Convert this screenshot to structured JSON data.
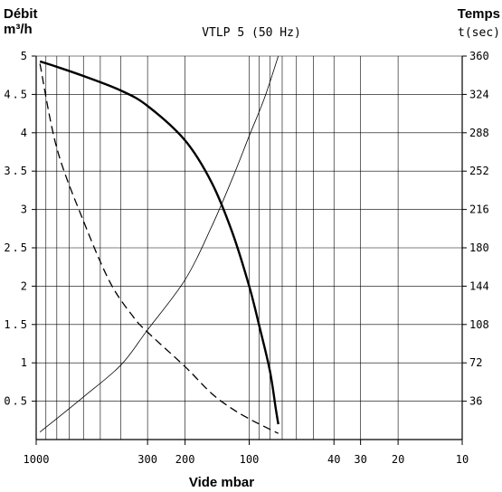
{
  "chart_data": {
    "type": "line",
    "title": "VTLP 5 (50 Hz)",
    "ylabel": "Débit",
    "ylabel_unit": "m³/h",
    "y2label": "Temps",
    "y2label_unit": "t(sec)",
    "xlabel": "Vide mbar",
    "x_scale": "log-reversed",
    "xlim": [
      1000,
      10
    ],
    "ylim": [
      0,
      5
    ],
    "y2lim": [
      0,
      360
    ],
    "x_ticks": [
      1000,
      300,
      200,
      100,
      40,
      30,
      20,
      10
    ],
    "y_ticks": [
      0.5,
      1,
      1.5,
      2,
      2.5,
      3,
      3.5,
      4,
      4.5,
      5
    ],
    "y2_ticks": [
      36,
      72,
      108,
      144,
      180,
      216,
      252,
      288,
      324,
      360
    ],
    "x_grid": [
      1000,
      900,
      800,
      700,
      600,
      500,
      400,
      300,
      200,
      100,
      90,
      80,
      70,
      60,
      50,
      40,
      30,
      20,
      10
    ],
    "grid": true,
    "series": [
      {
        "style": "thick-solid",
        "axis": "left",
        "x": [
          960,
          800,
          600,
          400,
          300,
          200,
          150,
          120,
          100,
          90,
          80,
          75,
          73
        ],
        "y": [
          4.93,
          4.86,
          4.74,
          4.55,
          4.35,
          3.9,
          3.35,
          2.7,
          2.0,
          1.5,
          0.9,
          0.4,
          0.2
        ]
      },
      {
        "style": "dashed",
        "axis": "left",
        "x": [
          960,
          800,
          600,
          450,
          350,
          300,
          200,
          150,
          120,
          100,
          85,
          73
        ],
        "y": [
          4.9,
          3.8,
          2.85,
          2.05,
          1.6,
          1.4,
          0.95,
          0.6,
          0.4,
          0.27,
          0.17,
          0.08
        ]
      },
      {
        "style": "thin-solid",
        "axis": "right",
        "x": [
          960,
          600,
          400,
          300,
          200,
          150,
          120,
          100,
          85,
          73
        ],
        "y": [
          7,
          40,
          70,
          103,
          150,
          200,
          245,
          285,
          320,
          360
        ]
      }
    ]
  }
}
